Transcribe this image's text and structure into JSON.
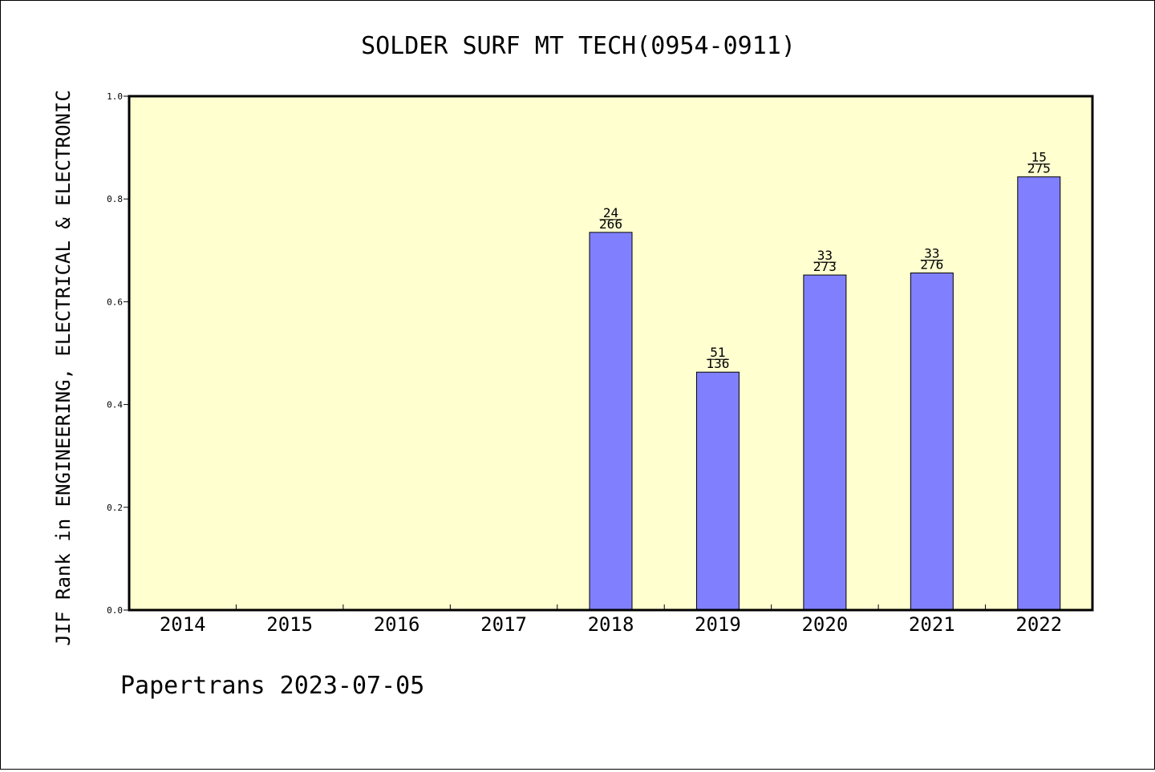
{
  "chart_data": {
    "type": "bar",
    "title": "SOLDER SURF MT TECH(0954-0911)",
    "ylabel": "JIF Rank in ENGINEERING, ELECTRICAL & ELECTRONIC",
    "xlabel": "",
    "categories": [
      "2014",
      "2015",
      "2016",
      "2017",
      "2018",
      "2019",
      "2020",
      "2021",
      "2022"
    ],
    "values": [
      null,
      null,
      null,
      null,
      0.735,
      0.463,
      0.652,
      0.656,
      0.843
    ],
    "labels_top": [
      "",
      "",
      "",
      "",
      "24",
      "51",
      "33",
      "33",
      "15"
    ],
    "labels_bottom": [
      "",
      "",
      "",
      "",
      "266",
      "136",
      "273",
      "276",
      "275"
    ],
    "ylim": [
      0,
      1.0
    ],
    "yticks": [
      "0.0",
      "0.2",
      "0.4",
      "0.6",
      "0.8",
      "1.0"
    ],
    "grid": false,
    "colors": {
      "bar": "#8080ff",
      "plot_bg": "#ffffd0",
      "axis": "#000000"
    }
  },
  "footer": {
    "text": "Papertrans 2023-07-05"
  }
}
